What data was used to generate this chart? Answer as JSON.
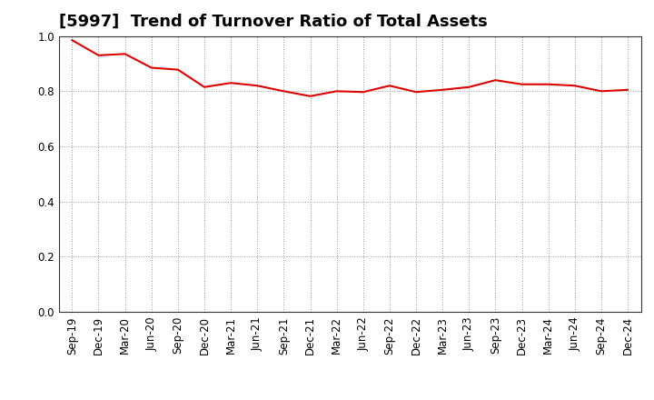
{
  "title": "[5997]  Trend of Turnover Ratio of Total Assets",
  "x_labels": [
    "Sep-19",
    "Dec-19",
    "Mar-20",
    "Jun-20",
    "Sep-20",
    "Dec-20",
    "Mar-21",
    "Jun-21",
    "Sep-21",
    "Dec-21",
    "Mar-22",
    "Jun-22",
    "Sep-22",
    "Dec-22",
    "Mar-23",
    "Jun-23",
    "Sep-23",
    "Dec-23",
    "Mar-24",
    "Jun-24",
    "Sep-24",
    "Dec-24"
  ],
  "values": [
    0.985,
    0.93,
    0.935,
    0.885,
    0.878,
    0.815,
    0.83,
    0.82,
    0.8,
    0.782,
    0.8,
    0.797,
    0.82,
    0.797,
    0.805,
    0.815,
    0.84,
    0.825,
    0.825,
    0.82,
    0.8,
    0.805
  ],
  "line_color": "#dd0000",
  "ylim": [
    0.0,
    1.0
  ],
  "yticks": [
    0.0,
    0.2,
    0.4,
    0.6,
    0.8,
    1.0
  ],
  "background_color": "#ffffff",
  "grid_color": "#999999",
  "title_fontsize": 13,
  "tick_fontsize": 8.5,
  "spine_color": "#333333"
}
